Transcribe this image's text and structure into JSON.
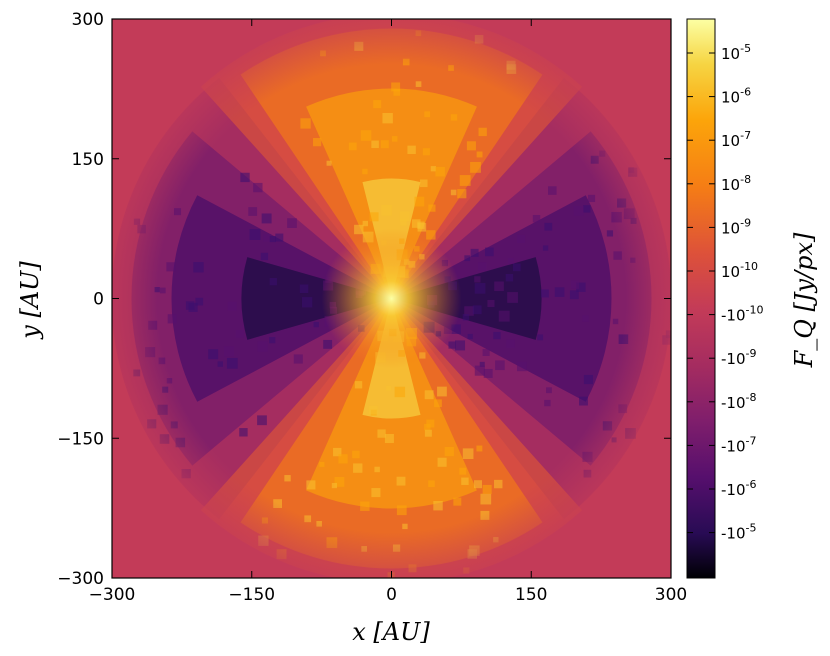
{
  "chart_data": {
    "type": "heatmap",
    "title": "",
    "xlabel": "x [AU]",
    "ylabel": "y [AU]",
    "xlim": [
      -300,
      300
    ],
    "ylim": [
      -300,
      300
    ],
    "x_ticks": [
      -300,
      -150,
      0,
      150,
      300
    ],
    "y_ticks": [
      -300,
      -150,
      0,
      150,
      300
    ],
    "x_tick_labels": [
      "−300",
      "−150",
      "0",
      "150",
      "300"
    ],
    "y_tick_labels": [
      "−300",
      "−150",
      "0",
      "150",
      "300"
    ],
    "grid": false,
    "description_free": true,
    "colorbar": {
      "label": "F_Q [Jy/px]",
      "scale": "symlog",
      "colormap": "inferno",
      "range": [
        -3e-05,
        6e-05
      ],
      "tick_labels": [
        "10-5",
        "10-6",
        "10-7",
        "10-8",
        "10-9",
        "10-10",
        "-10-10",
        "-10-9",
        "-10-8",
        "-10-7",
        "-10-6",
        "-10-5"
      ],
      "tick_values": [
        1e-05,
        1e-06,
        1e-07,
        1e-08,
        1e-09,
        1e-10,
        -1e-10,
        -1e-09,
        -1e-08,
        -1e-07,
        -1e-06,
        -1e-05
      ]
    },
    "pattern": {
      "background_value": 0,
      "positive_lobes": "top and bottom (along y axis)",
      "negative_lobes": "left and right (along x axis)",
      "center": [
        0,
        0
      ]
    },
    "colors": {
      "background": "#c33b58",
      "positive_low": "#f57d15",
      "positive_high": "#fcffa4",
      "negative_low": "#a52c60",
      "negative_high": "#1b0c41"
    }
  }
}
